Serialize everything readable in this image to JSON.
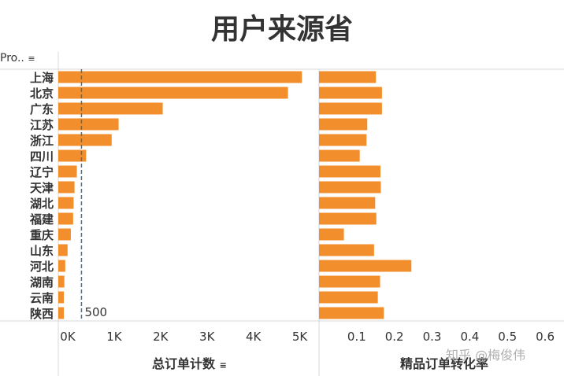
{
  "title": "用户来源省",
  "row_field_label": "Pro..",
  "sort_icon": "sort-icon",
  "watermark": "知乎 @梅俊伟",
  "colors": {
    "bar": "#F28E2B",
    "reference_line": "#4E6E81",
    "grid": "#d9d9d9"
  },
  "chart_data": [
    {
      "type": "bar",
      "orientation": "horizontal",
      "categories": [
        "上海",
        "北京",
        "广东",
        "江苏",
        "浙江",
        "四川",
        "辽宁",
        "天津",
        "湖北",
        "福建",
        "重庆",
        "山东",
        "河北",
        "湖南",
        "云南",
        "陕西"
      ],
      "values": [
        5250,
        4950,
        2250,
        1300,
        1150,
        600,
        400,
        350,
        330,
        320,
        270,
        200,
        150,
        130,
        120,
        120
      ],
      "xlabel": "总订单计数",
      "xlim": [
        0,
        5500
      ],
      "xticks": [
        0,
        1000,
        2000,
        3000,
        4000,
        5000
      ],
      "xtick_labels": [
        "0K",
        "1K",
        "2K",
        "3K",
        "4K",
        "5K"
      ],
      "reference_line": {
        "value": 500,
        "label": "500",
        "style": "dashed"
      },
      "grid": false
    },
    {
      "type": "bar",
      "orientation": "horizontal",
      "categories": [
        "上海",
        "北京",
        "广东",
        "江苏",
        "浙江",
        "四川",
        "辽宁",
        "天津",
        "湖北",
        "福建",
        "重庆",
        "山东",
        "河北",
        "湖南",
        "云南",
        "陕西"
      ],
      "values": [
        0.151,
        0.167,
        0.167,
        0.128,
        0.126,
        0.108,
        0.163,
        0.164,
        0.149,
        0.152,
        0.066,
        0.146,
        0.245,
        0.162,
        0.156,
        0.172
      ],
      "xlabel": "精品订单转化率",
      "xlim": [
        0,
        0.65
      ],
      "xticks": [
        0.1,
        0.2,
        0.3,
        0.4,
        0.5,
        0.6
      ],
      "xtick_labels": [
        "0.1",
        "0.2",
        "0.3",
        "0.4",
        "0.5",
        "0.6"
      ],
      "grid": false
    }
  ]
}
